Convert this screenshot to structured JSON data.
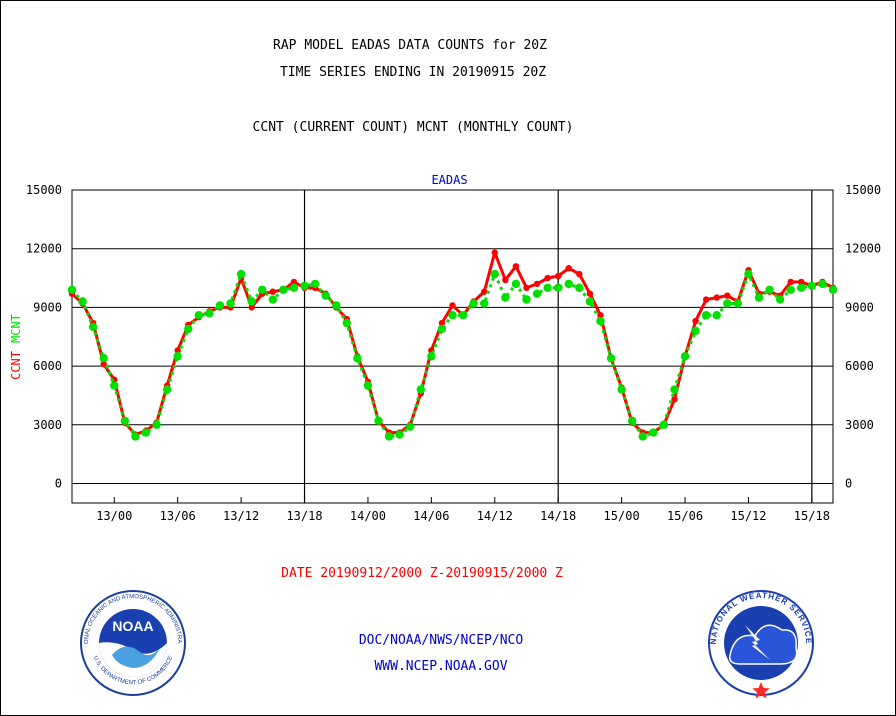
{
  "header": {
    "line1": "RAP MODEL EADAS DATA COUNTS for 20Z",
    "line2": "TIME SERIES ENDING IN 20190915 20Z",
    "line3": "CCNT (CURRENT COUNT) MCNT (MONTHLY COUNT)"
  },
  "footer": {
    "date_range": "DATE 20190912/2000 Z-20190915/2000 Z",
    "agency": "DOC/NOAA/NWS/NCEP/NCO",
    "url": "WWW.NCEP.NOAA.GOV"
  },
  "logos": {
    "noaa": "NOAA",
    "noaa_ring": "NATIONAL OCEANIC AND ATMOSPHERIC ADMINISTRATION",
    "noaa_ring_bottom": "U.S. DEPARTMENT OF COMMERCE",
    "nws_ring": "NATIONAL WEATHER SERVICE"
  },
  "colors": {
    "ccnt": "#ff0000",
    "mcnt": "#00e000",
    "title": "#0000cc",
    "frame": "#000000"
  },
  "chart_data": {
    "type": "line",
    "title": "EADAS",
    "ylabel_parts": [
      "CCNT",
      "MCNT"
    ],
    "ylim": [
      -1000,
      15000
    ],
    "yticks": [
      0,
      3000,
      6000,
      9000,
      12000,
      15000
    ],
    "ytick_labels": [
      "0",
      "3000",
      "6000",
      "9000",
      "12000",
      "15000"
    ],
    "xlim": [
      0,
      72
    ],
    "x_ticks": [
      4,
      10,
      16,
      22,
      28,
      34,
      40,
      46,
      52,
      58,
      64,
      70
    ],
    "x_tick_labels": [
      "13/00",
      "13/06",
      "13/12",
      "13/18",
      "14/00",
      "14/06",
      "14/12",
      "14/18",
      "15/00",
      "15/06",
      "15/12",
      "15/18"
    ],
    "day_boundaries": [
      22,
      46,
      70
    ],
    "grid": true,
    "series": [
      {
        "name": "CCNT",
        "values": [
          9700,
          9200,
          8200,
          6100,
          5300,
          3100,
          2500,
          2700,
          3100,
          5000,
          6800,
          8100,
          8500,
          8800,
          9000,
          9000,
          10500,
          9000,
          9700,
          9800,
          9900,
          10300,
          10000,
          10000,
          9700,
          9000,
          8400,
          6500,
          5200,
          3200,
          2600,
          2600,
          3000,
          4600,
          6800,
          8200,
          9100,
          8600,
          9300,
          9800,
          11800,
          10400,
          11100,
          10000,
          10200,
          10500,
          10600,
          11000,
          10700,
          9700,
          8600,
          6400,
          4900,
          3100,
          2600,
          2600,
          3000,
          4300,
          6500,
          8300,
          9400,
          9500,
          9600,
          9300,
          10900,
          9700,
          9800,
          9600,
          10300,
          10300,
          10100,
          10300,
          10000
        ]
      },
      {
        "name": "MCNT",
        "values": [
          9900,
          9300,
          8000,
          6400,
          5000,
          3200,
          2400,
          2600,
          3000,
          4800,
          6500,
          7900,
          8600,
          8700,
          9100,
          9200,
          10700,
          9300,
          9900,
          9400,
          9900,
          10000,
          10100,
          10200,
          9600,
          9100,
          8200,
          6400,
          5000,
          3200,
          2400,
          2500,
          2900,
          4800,
          6500,
          7900,
          8600,
          8600,
          9200,
          9200,
          10700,
          9500,
          10200,
          9400,
          9700,
          10000,
          10000,
          10200,
          10000,
          9300,
          8300,
          6400,
          4800,
          3200,
          2400,
          2600,
          3000,
          4800,
          6500,
          7800,
          8600,
          8600,
          9200,
          9200,
          10700,
          9500,
          9900,
          9400,
          9900,
          10000,
          10100,
          10200,
          9900
        ]
      }
    ]
  }
}
